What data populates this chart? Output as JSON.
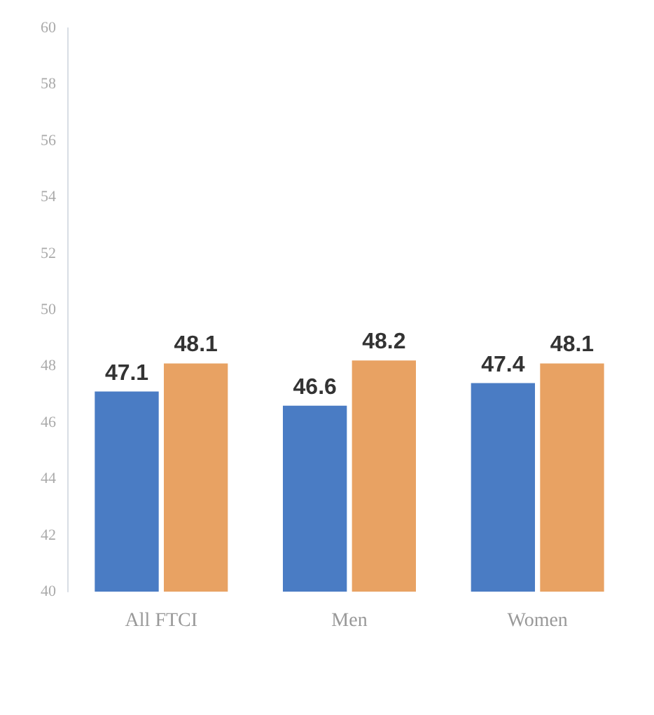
{
  "chart_data": {
    "type": "bar",
    "categories": [
      "All FTCI",
      "Men",
      "Women"
    ],
    "series": [
      {
        "color": "#4a7cc4",
        "values": [
          47.1,
          46.6,
          47.4
        ]
      },
      {
        "color": "#e8a263",
        "values": [
          48.1,
          48.2,
          48.1
        ]
      }
    ],
    "ylim": [
      40,
      60
    ],
    "yticks": [
      40,
      42,
      44,
      46,
      48,
      50,
      52,
      54,
      56,
      58,
      60
    ],
    "grid": false,
    "data_labels": true
  }
}
